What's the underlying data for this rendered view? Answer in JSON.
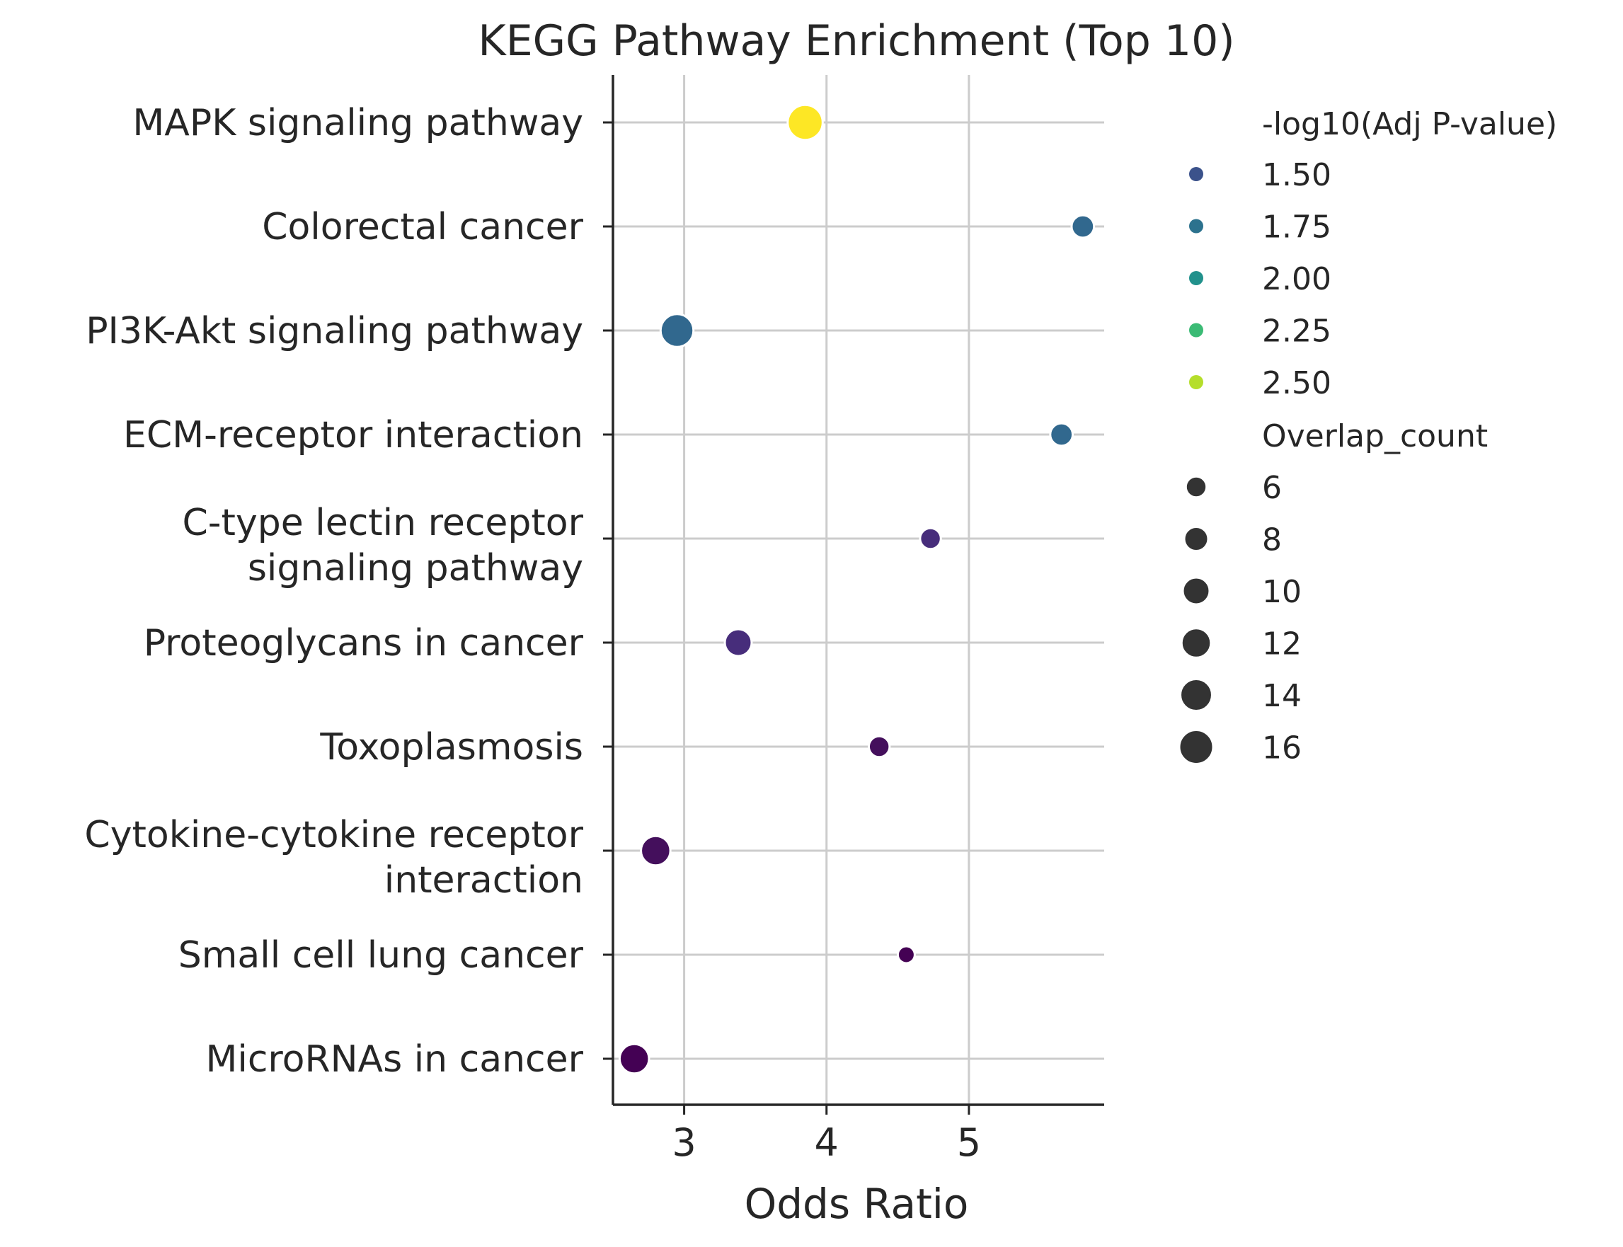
{
  "chart_data": {
    "type": "scatter",
    "title": "KEGG Pathway Enrichment (Top 10)",
    "xlabel": "Odds Ratio",
    "ylabel": "",
    "xlim": [
      2.5,
      5.95
    ],
    "x_ticks": [
      "3",
      "4",
      "5"
    ],
    "grid": true,
    "legend_position": "right",
    "categories": [
      [
        "MAPK signaling pathway"
      ],
      [
        "Colorectal cancer"
      ],
      [
        "PI3K-Akt signaling pathway"
      ],
      [
        "ECM-receptor interaction"
      ],
      [
        "C-type lectin receptor",
        "signaling pathway"
      ],
      [
        "Proteoglycans in cancer"
      ],
      [
        "Toxoplasmosis"
      ],
      [
        "Cytokine-cytokine receptor",
        "interaction"
      ],
      [
        "Small cell lung cancer"
      ],
      [
        "MicroRNAs in cancer"
      ]
    ],
    "points": [
      {
        "x": 3.85,
        "overlap": 17,
        "neglog10p": 2.62,
        "color": "#fde725"
      },
      {
        "x": 5.8,
        "overlap": 7,
        "neglog10p": 1.72,
        "color": "#31688e"
      },
      {
        "x": 2.95,
        "overlap": 15,
        "neglog10p": 1.73,
        "color": "#31688e"
      },
      {
        "x": 5.65,
        "overlap": 7,
        "neglog10p": 1.7,
        "color": "#31688e"
      },
      {
        "x": 4.73,
        "overlap": 6,
        "neglog10p": 1.4,
        "color": "#472d7b"
      },
      {
        "x": 3.38,
        "overlap": 10,
        "neglog10p": 1.38,
        "color": "#472d7b"
      },
      {
        "x": 4.37,
        "overlap": 6,
        "neglog10p": 1.32,
        "color": "#440f5c"
      },
      {
        "x": 2.8,
        "overlap": 12,
        "neglog10p": 1.3,
        "color": "#440f5c"
      },
      {
        "x": 4.56,
        "overlap": 4,
        "neglog10p": 1.25,
        "color": "#440154"
      },
      {
        "x": 2.65,
        "overlap": 12,
        "neglog10p": 1.24,
        "color": "#440154"
      }
    ],
    "legend": {
      "color_title": "-log10(Adj P-value)",
      "color_items": [
        {
          "label": "1.50",
          "color": "#3b528b"
        },
        {
          "label": "1.75",
          "color": "#2c728e"
        },
        {
          "label": "2.00",
          "color": "#21918c"
        },
        {
          "label": "2.25",
          "color": "#3bbb75"
        },
        {
          "label": "2.50",
          "color": "#b5de2b"
        }
      ],
      "size_title": "Overlap_count",
      "size_items": [
        {
          "label": "6",
          "value": 6
        },
        {
          "label": "8",
          "value": 8
        },
        {
          "label": "10",
          "value": 10
        },
        {
          "label": "12",
          "value": 12
        },
        {
          "label": "14",
          "value": 14
        },
        {
          "label": "16",
          "value": 16
        }
      ],
      "size_marker_color": "#333333"
    },
    "colors": {
      "axis": "#262626",
      "grid": "#cccccc",
      "marker_edge": "#ffffff"
    }
  }
}
